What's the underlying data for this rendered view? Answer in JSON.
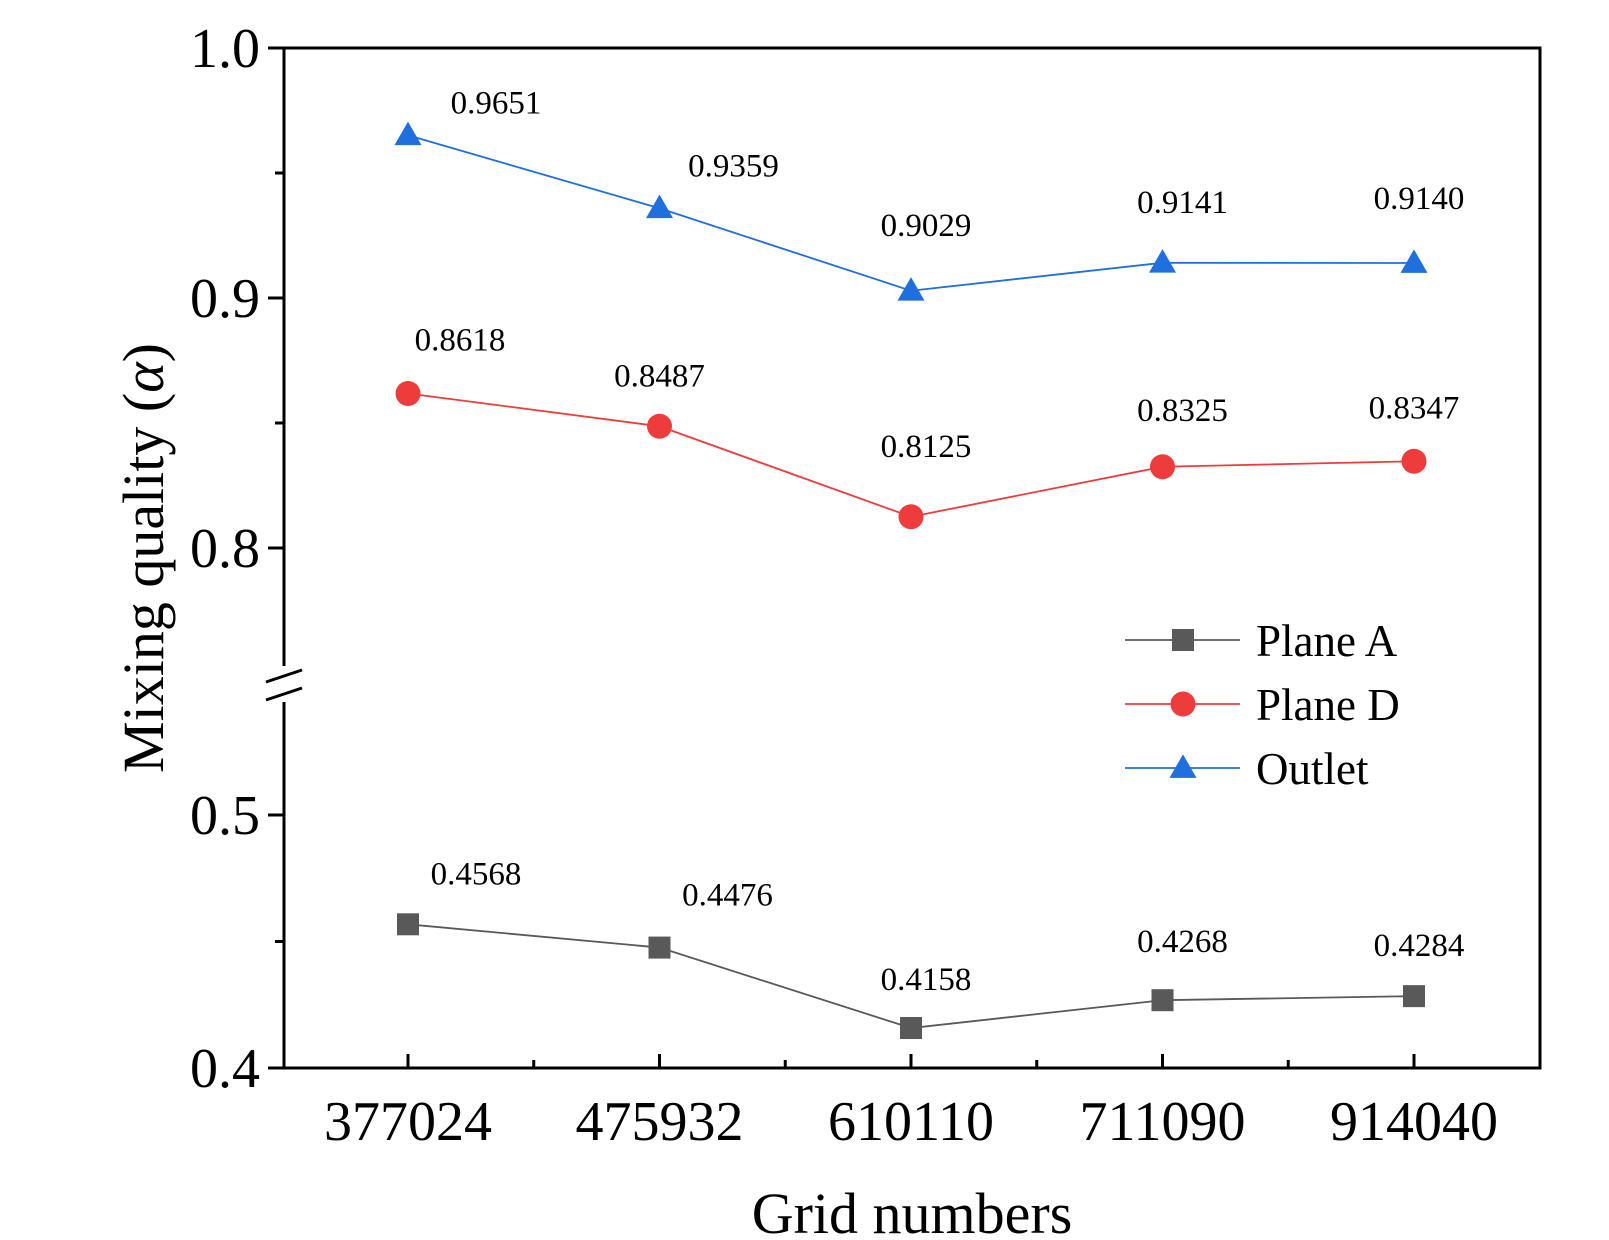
{
  "chart_data": {
    "type": "line",
    "xlabel": "Grid numbers",
    "ylabel": "Mixing quality (α)",
    "ylabel_parts": {
      "prefix": "Mixing quality (",
      "symbol": "α",
      "suffix": ")"
    },
    "categories": [
      "377024",
      "475932",
      "610110",
      "711090",
      "914040"
    ],
    "y_axis_break": {
      "lower_range": [
        0.4,
        0.54
      ],
      "upper_range": [
        0.76,
        1.0
      ]
    },
    "y_ticks": [
      "0.4",
      "0.5",
      "0.8",
      "0.9",
      "1.0"
    ],
    "grid": false,
    "legend_position": "right-middle",
    "series": [
      {
        "name": "Plane A",
        "marker": "square",
        "color": "#595959",
        "values": [
          0.4568,
          0.4476,
          0.4158,
          0.4268,
          0.4284
        ],
        "labels": [
          "0.4568",
          "0.4476",
          "0.4158",
          "0.4268",
          "0.4284"
        ]
      },
      {
        "name": "Plane D",
        "marker": "circle",
        "color": "#ee3b3b",
        "values": [
          0.8618,
          0.8487,
          0.8125,
          0.8325,
          0.8347
        ],
        "labels": [
          "0.8618",
          "0.8487",
          "0.8125",
          "0.8325",
          "0.8347"
        ]
      },
      {
        "name": "Outlet",
        "marker": "triangle",
        "color": "#1f6fde",
        "values": [
          0.9651,
          0.9359,
          0.9029,
          0.9141,
          0.914
        ],
        "labels": [
          "0.9651",
          "0.9359",
          "0.9029",
          "0.9141",
          "0.9140"
        ]
      }
    ]
  }
}
